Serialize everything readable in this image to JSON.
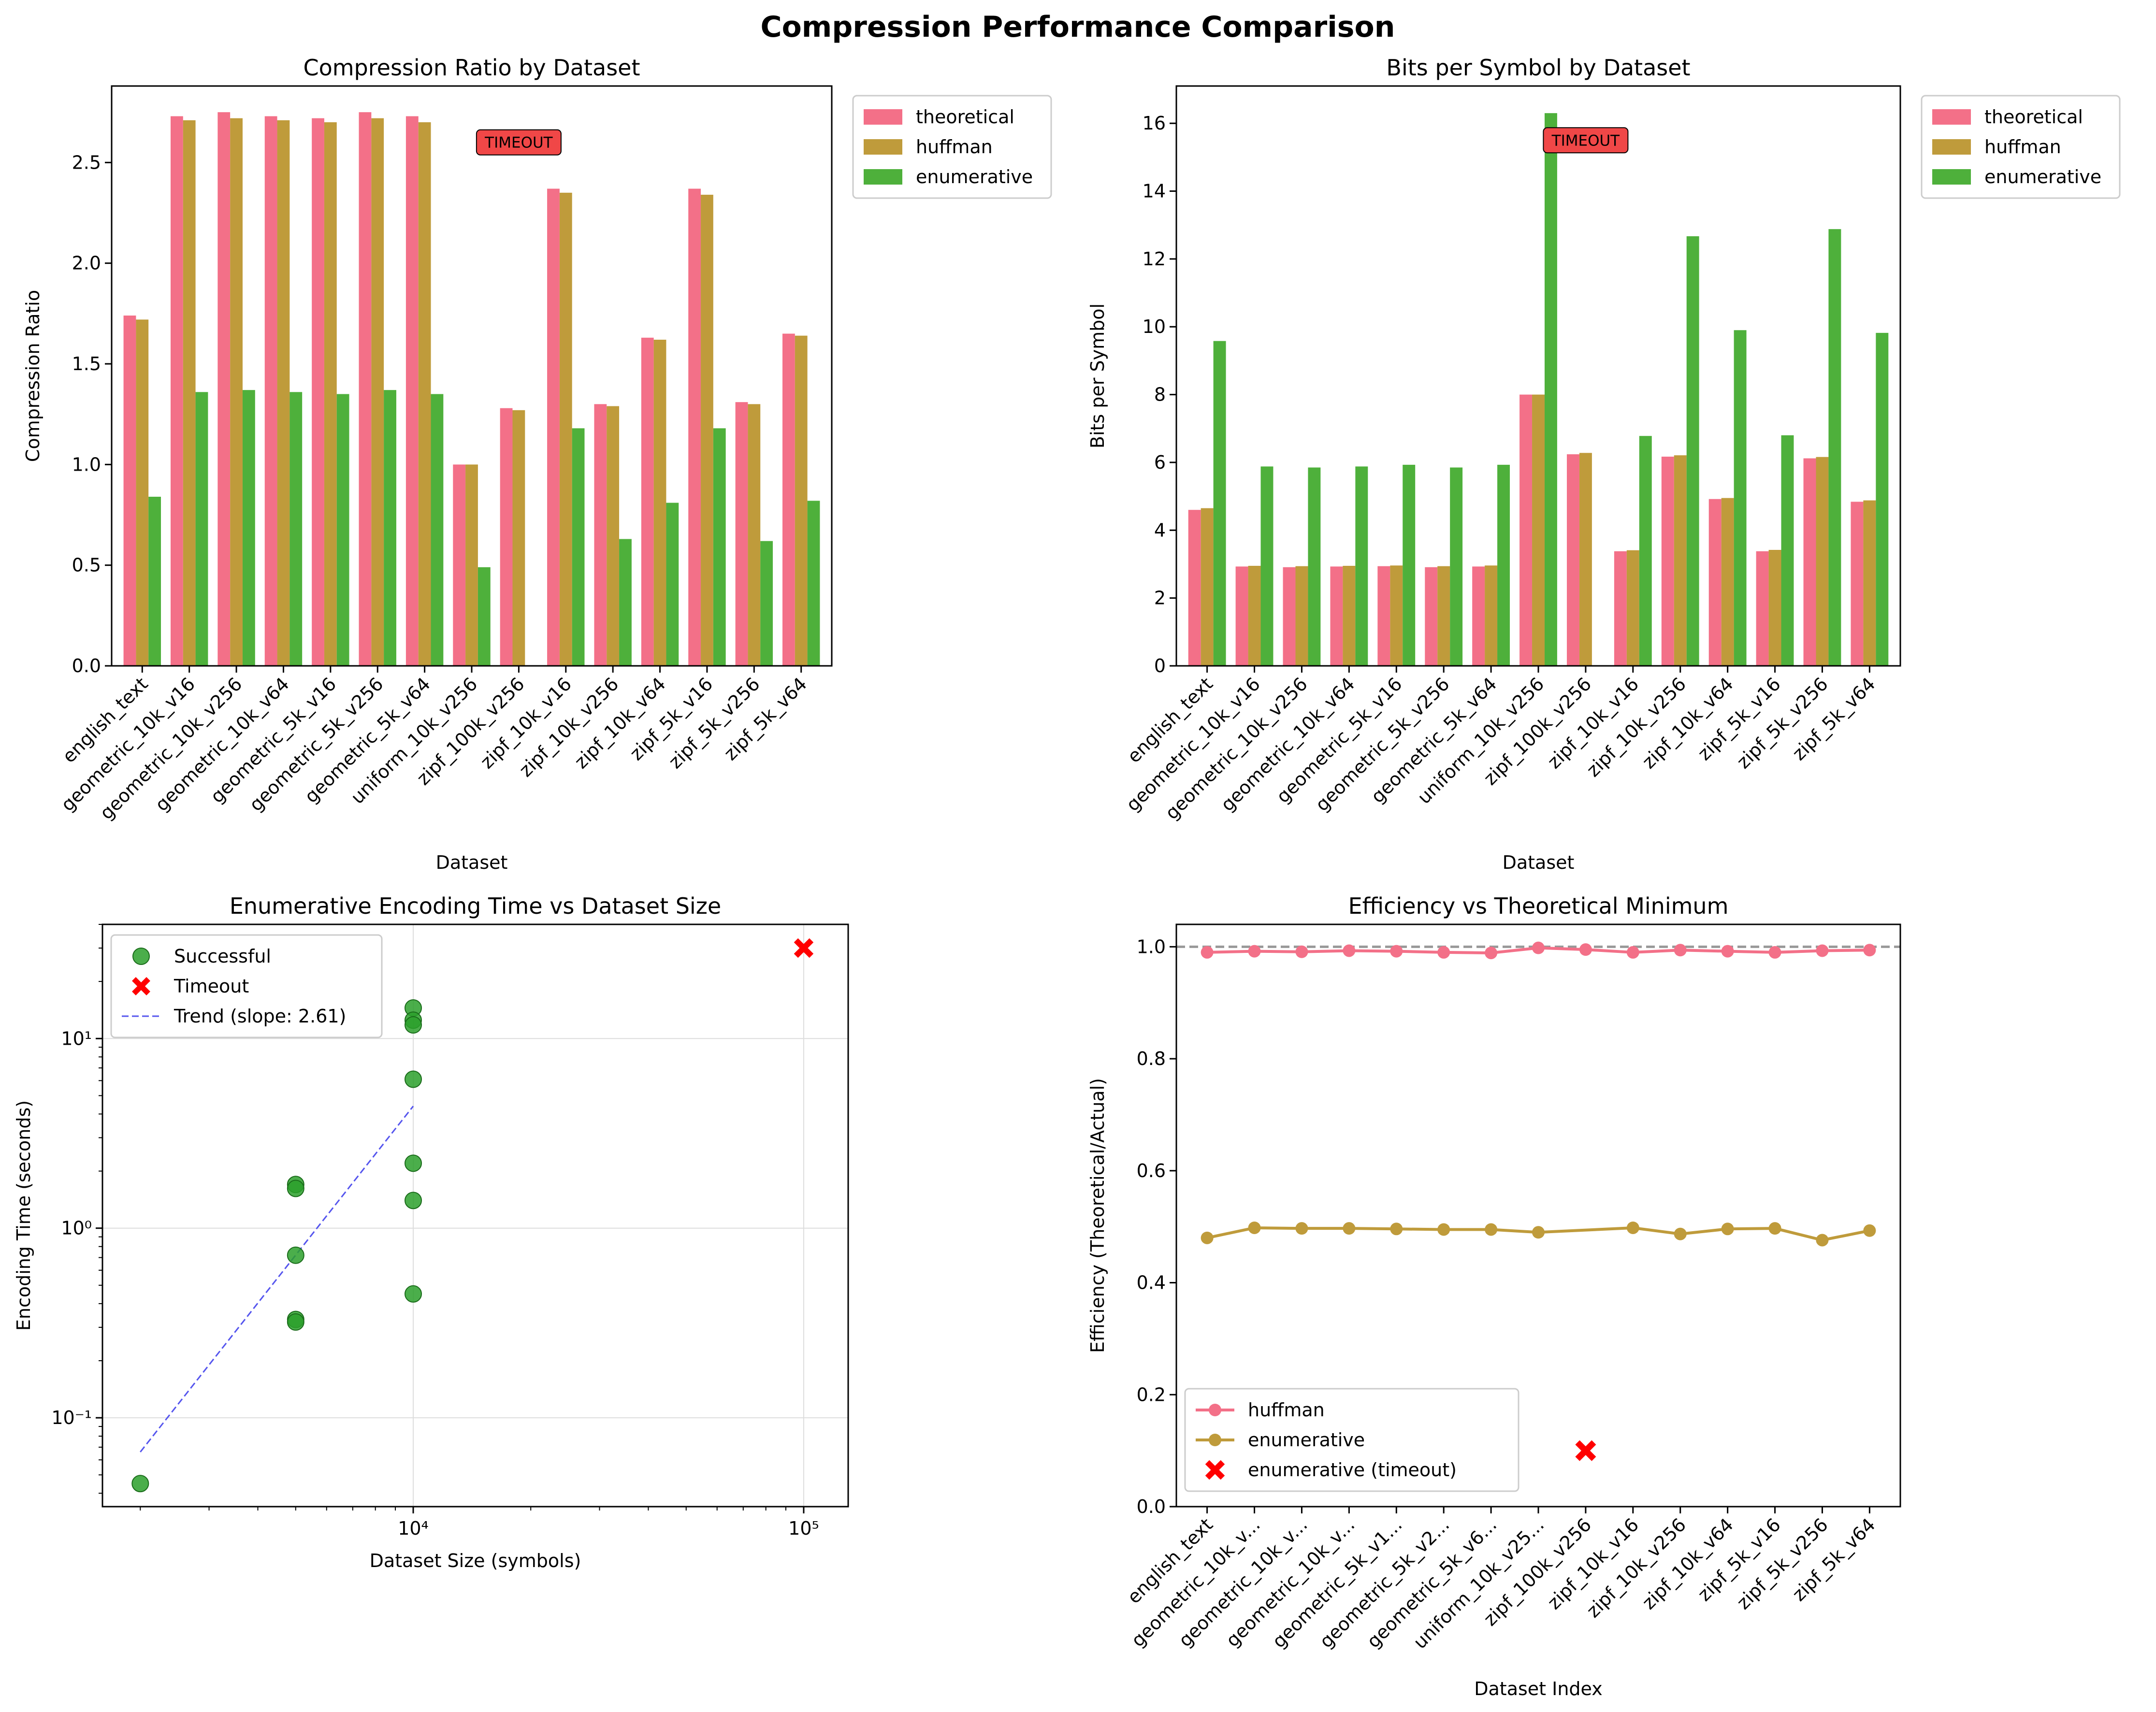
{
  "figure": {
    "title": "Compression Performance Comparison"
  },
  "colors": {
    "theoretical": "#f37088",
    "huffman": "#bf9b3b",
    "enumerative": "#4eb03b",
    "successful_point": "#2ca02c",
    "timeout_marker": "#ff0000",
    "trend_line": "#5555ee",
    "timeout_badge": "#f04747",
    "reference_line": "#999999"
  },
  "chart_data": [
    {
      "type": "bar",
      "title": "Compression Ratio by Dataset",
      "xlabel": "Dataset",
      "ylabel": "Compression Ratio",
      "ylim": [
        0,
        2.88
      ],
      "yticks": [
        0.0,
        0.5,
        1.0,
        1.5,
        2.0,
        2.5
      ],
      "ytick_labels": [
        "0.0",
        "0.5",
        "1.0",
        "1.5",
        "2.0",
        "2.5"
      ],
      "categories": [
        "english_text",
        "geometric_10k_v16",
        "geometric_10k_v256",
        "geometric_10k_v64",
        "geometric_5k_v16",
        "geometric_5k_v256",
        "geometric_5k_v64",
        "uniform_10k_v256",
        "zipf_100k_v256",
        "zipf_10k_v16",
        "zipf_10k_v256",
        "zipf_10k_v64",
        "zipf_5k_v16",
        "zipf_5k_v256",
        "zipf_5k_v64"
      ],
      "series": [
        {
          "name": "theoretical",
          "values": [
            1.74,
            2.73,
            2.75,
            2.73,
            2.72,
            2.75,
            2.73,
            1.0,
            1.28,
            2.37,
            1.3,
            1.63,
            2.37,
            1.31,
            1.65
          ]
        },
        {
          "name": "huffman",
          "values": [
            1.72,
            2.71,
            2.72,
            2.71,
            2.7,
            2.72,
            2.7,
            1.0,
            1.27,
            2.35,
            1.29,
            1.62,
            2.34,
            1.3,
            1.64
          ]
        },
        {
          "name": "enumerative",
          "values": [
            0.84,
            1.36,
            1.37,
            1.36,
            1.35,
            1.37,
            1.35,
            0.49,
            null,
            1.18,
            0.63,
            0.81,
            1.18,
            0.62,
            0.82
          ]
        }
      ],
      "annotation": {
        "text": "TIMEOUT",
        "category_index": 8,
        "y": 2.6
      },
      "legend": "outside-right"
    },
    {
      "type": "bar",
      "title": "Bits per Symbol by Dataset",
      "xlabel": "Dataset",
      "ylabel": "Bits per Symbol",
      "ylim": [
        0,
        17.1
      ],
      "yticks": [
        0,
        2,
        4,
        6,
        8,
        10,
        12,
        14,
        16
      ],
      "ytick_labels": [
        "0",
        "2",
        "4",
        "6",
        "8",
        "10",
        "12",
        "14",
        "16"
      ],
      "categories": [
        "english_text",
        "geometric_10k_v16",
        "geometric_10k_v256",
        "geometric_10k_v64",
        "geometric_5k_v16",
        "geometric_5k_v256",
        "geometric_5k_v64",
        "uniform_10k_v256",
        "zipf_100k_v256",
        "zipf_10k_v16",
        "zipf_10k_v256",
        "zipf_10k_v64",
        "zipf_5k_v16",
        "zipf_5k_v256",
        "zipf_5k_v64"
      ],
      "series": [
        {
          "name": "theoretical",
          "values": [
            4.6,
            2.93,
            2.91,
            2.93,
            2.94,
            2.91,
            2.93,
            8.0,
            6.24,
            3.38,
            6.17,
            4.92,
            3.38,
            6.12,
            4.84
          ]
        },
        {
          "name": "huffman",
          "values": [
            4.65,
            2.95,
            2.94,
            2.95,
            2.96,
            2.94,
            2.96,
            8.0,
            6.28,
            3.41,
            6.21,
            4.95,
            3.42,
            6.16,
            4.88
          ]
        },
        {
          "name": "enumerative",
          "values": [
            9.58,
            5.88,
            5.85,
            5.88,
            5.93,
            5.85,
            5.93,
            16.3,
            null,
            6.78,
            12.67,
            9.9,
            6.8,
            12.88,
            9.82
          ]
        }
      ],
      "annotation": {
        "text": "TIMEOUT",
        "category_index": 8,
        "y": 15.5
      },
      "legend": "outside-right"
    },
    {
      "type": "scatter",
      "title": "Enumerative Encoding Time vs Dataset Size",
      "xlabel": "Dataset Size (symbols)",
      "ylabel": "Encoding Time (seconds)",
      "xscale": "log",
      "yscale": "log",
      "xlim": [
        1600,
        130000
      ],
      "ylim": [
        0.034,
        40
      ],
      "grid": true,
      "legend": "upper-left",
      "xtick_labels": [
        {
          "value": 10000,
          "label": "10⁴"
        },
        {
          "value": 100000,
          "label": "10⁵"
        }
      ],
      "ytick_labels": [
        {
          "value": 0.1,
          "label": "10⁻¹"
        },
        {
          "value": 1,
          "label": "10⁰"
        },
        {
          "value": 10,
          "label": "10¹"
        }
      ],
      "series": [
        {
          "name": "Successful",
          "points": [
            [
              2000,
              0.045
            ],
            [
              5000,
              1.7
            ],
            [
              5000,
              1.62
            ],
            [
              5000,
              0.72
            ],
            [
              5000,
              0.33
            ],
            [
              5000,
              0.32
            ],
            [
              10000,
              14.5
            ],
            [
              10000,
              12.5
            ],
            [
              10000,
              11.8
            ],
            [
              10000,
              6.1
            ],
            [
              10000,
              2.2
            ],
            [
              10000,
              1.4
            ],
            [
              10000,
              0.45
            ]
          ]
        },
        {
          "name": "Timeout",
          "points": [
            [
              100000,
              30
            ]
          ]
        },
        {
          "name": "Trend (slope: 2.61)",
          "line": [
            [
              2000,
              0.066
            ],
            [
              10000,
              4.4
            ]
          ]
        }
      ]
    },
    {
      "type": "line",
      "title": "Efficiency vs Theoretical Minimum",
      "xlabel": "Dataset Index",
      "ylabel": "Efficiency (Theoretical/Actual)",
      "ylim": [
        0,
        1.04
      ],
      "yticks": [
        0.0,
        0.2,
        0.4,
        0.6,
        0.8,
        1.0
      ],
      "ytick_labels": [
        "0.0",
        "0.2",
        "0.4",
        "0.6",
        "0.8",
        "1.0"
      ],
      "reference_y": 1.0,
      "legend": "lower-left",
      "categories": [
        "english_text",
        "geometric_10k_v...",
        "geometric_10k_v...",
        "geometric_10k_v...",
        "geometric_5k_v1...",
        "geometric_5k_v2...",
        "geometric_5k_v6...",
        "uniform_10k_v25...",
        "zipf_100k_v256",
        "zipf_10k_v16",
        "zipf_10k_v256",
        "zipf_10k_v64",
        "zipf_5k_v16",
        "zipf_5k_v256",
        "zipf_5k_v64"
      ],
      "series": [
        {
          "name": "huffman",
          "values": [
            0.99,
            0.992,
            0.991,
            0.993,
            0.992,
            0.99,
            0.989,
            0.998,
            0.995,
            0.99,
            0.994,
            0.992,
            0.99,
            0.993,
            0.994
          ]
        },
        {
          "name": "enumerative",
          "values": [
            0.48,
            0.498,
            0.497,
            0.497,
            0.496,
            0.495,
            0.495,
            0.49,
            null,
            0.498,
            0.487,
            0.496,
            0.497,
            0.476,
            0.493
          ]
        },
        {
          "name": "enumerative (timeout)",
          "points": [
            [
              8,
              0.1
            ]
          ]
        }
      ]
    }
  ]
}
